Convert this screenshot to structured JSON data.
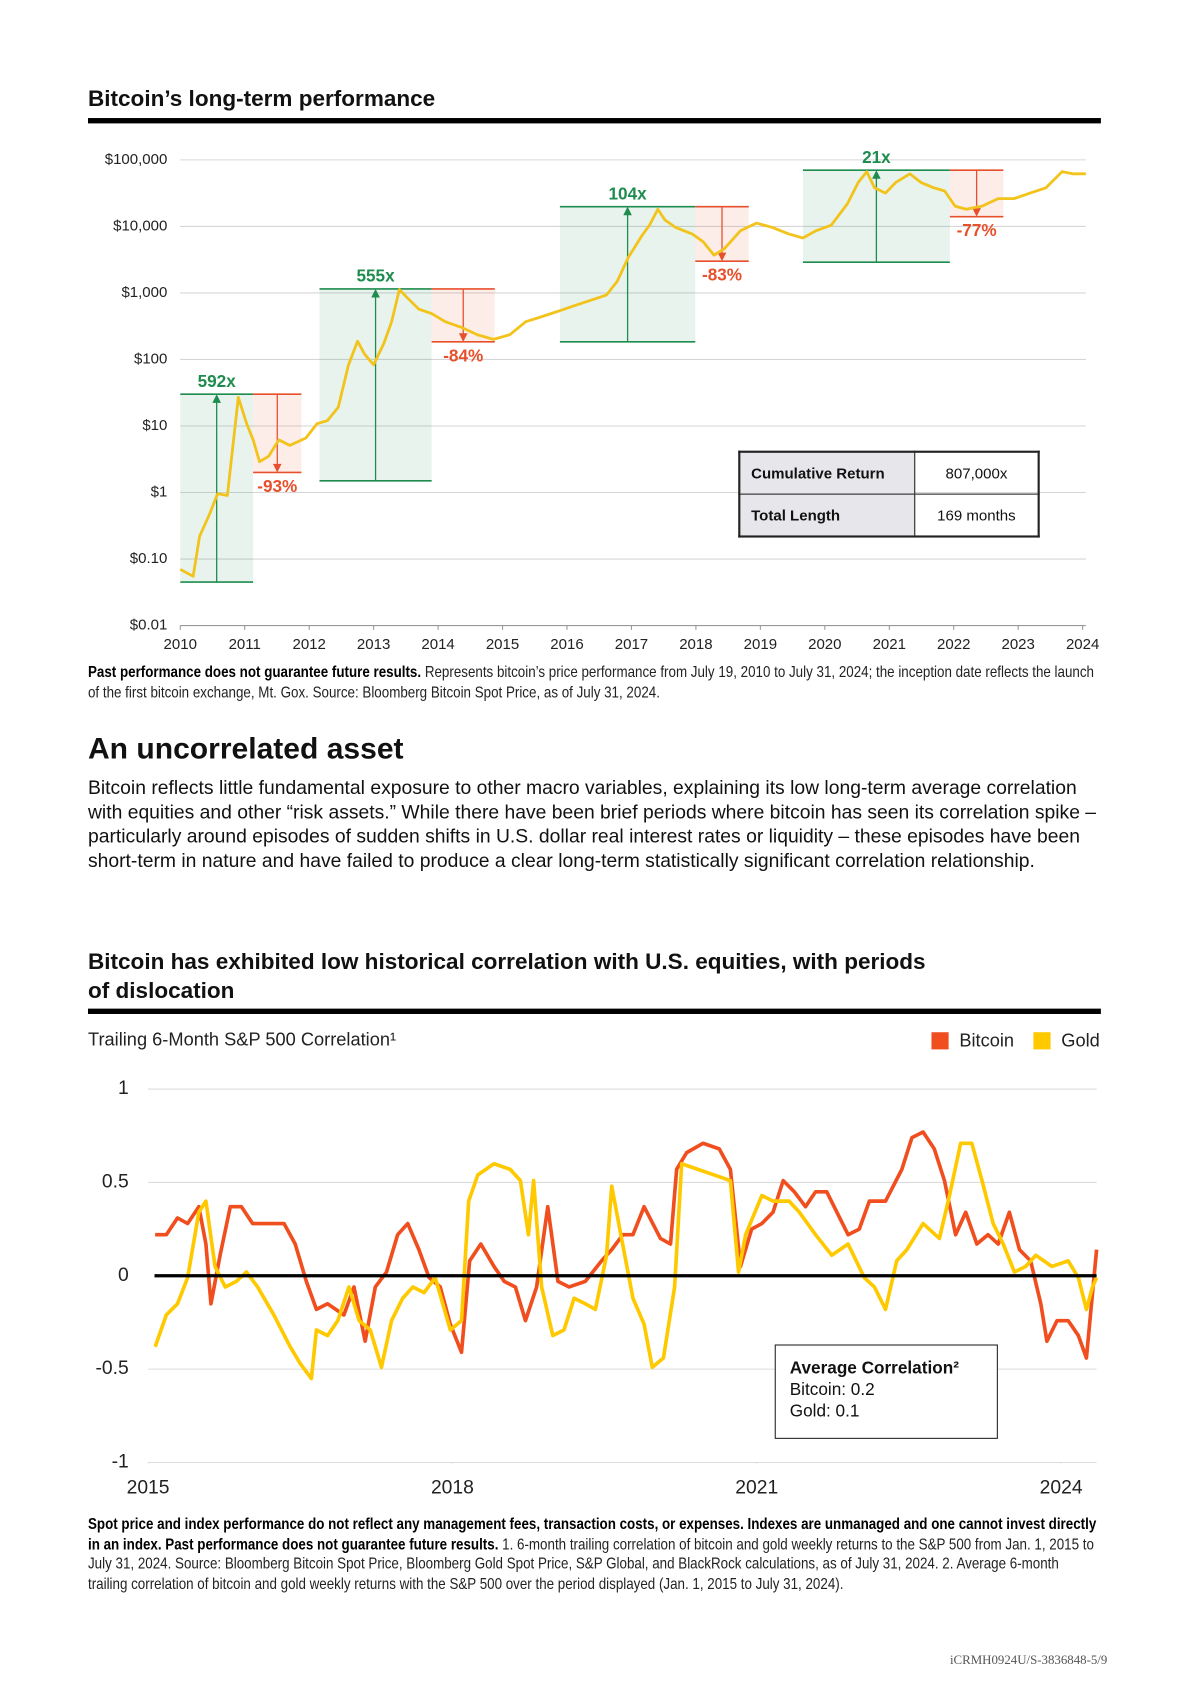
{
  "chart_data": [
    {
      "type": "line",
      "title": "Bitcoin’s long-term performance",
      "yscale": "log",
      "grid": true,
      "color": "#f2c31b",
      "x": [
        2010.0,
        2010.2,
        2010.3,
        2010.45,
        2010.58,
        2010.73,
        2010.9,
        2011.03,
        2011.13,
        2011.23,
        2011.37,
        2011.53,
        2011.7,
        2011.95,
        2012.12,
        2012.28,
        2012.45,
        2012.61,
        2012.75,
        2012.86,
        2013.0,
        2013.16,
        2013.28,
        2013.4,
        2013.53,
        2013.7,
        2013.9,
        2014.11,
        2014.36,
        2014.61,
        2014.86,
        2015.11,
        2015.36,
        2015.61,
        2015.86,
        2016.11,
        2016.36,
        2016.61,
        2016.78,
        2016.95,
        2017.16,
        2017.28,
        2017.41,
        2017.52,
        2017.69,
        2017.94,
        2018.11,
        2018.28,
        2018.44,
        2018.69,
        2018.94,
        2019.19,
        2019.44,
        2019.66,
        2019.86,
        2020.1,
        2020.35,
        2020.52,
        2020.65,
        2020.77,
        2020.94,
        2021.1,
        2021.32,
        2021.49,
        2021.69,
        2021.86,
        2022.02,
        2022.19,
        2022.44,
        2022.69,
        2022.94,
        2023.18,
        2023.43,
        2023.68,
        2023.85,
        2024.05
      ],
      "values": [
        0.07,
        0.055,
        0.22,
        0.46,
        0.96,
        0.9,
        27,
        10.8,
        6.2,
        2.9,
        3.5,
        6.2,
        5.1,
        6.6,
        10.8,
        12,
        19,
        83,
        188,
        120,
        83,
        175,
        370,
        1120,
        830,
        570,
        490,
        370,
        305,
        235,
        200,
        235,
        370,
        440,
        530,
        640,
        770,
        930,
        1500,
        3400,
        7200,
        10400,
        18100,
        12500,
        9600,
        7700,
        5900,
        3700,
        4600,
        8600,
        11200,
        9600,
        7700,
        6700,
        8600,
        10400,
        21800,
        45800,
        66500,
        38100,
        31600,
        45800,
        61700,
        45800,
        38100,
        34000,
        20200,
        18100,
        20200,
        26200,
        26200,
        31600,
        38100,
        66500,
        61700,
        61700
      ],
      "xlim": [
        2010,
        2024.05
      ],
      "xticks": [
        2010,
        2011,
        2012,
        2013,
        2014,
        2015,
        2016,
        2017,
        2018,
        2019,
        2020,
        2021,
        2022,
        2023,
        2024
      ],
      "ylim": [
        0.01,
        100000
      ],
      "yticks": [
        {
          "value": 0.01,
          "label": "$0.01"
        },
        {
          "value": 0.1,
          "label": "$0.10"
        },
        {
          "value": 1,
          "label": "$1"
        },
        {
          "value": 10,
          "label": "$10"
        },
        {
          "value": 100,
          "label": "$100"
        },
        {
          "value": 1000,
          "label": "$1,000"
        },
        {
          "value": 10000,
          "label": "$10,000"
        },
        {
          "value": 100000,
          "label": "$100,000"
        }
      ],
      "annotations": [
        {
          "label": "592x",
          "direction": "up",
          "color": "#1e8c4e",
          "x": [
            2010,
            2011.13
          ],
          "y": [
            0.045,
            30
          ]
        },
        {
          "label": "-93%",
          "direction": "down",
          "color": "#e8502c",
          "x": [
            2011.13,
            2011.88
          ],
          "y": [
            2,
            30
          ]
        },
        {
          "label": "555x",
          "direction": "up",
          "color": "#1e8c4e",
          "x": [
            2012.16,
            2013.9
          ],
          "y": [
            1.5,
            1150
          ]
        },
        {
          "label": "-84%",
          "direction": "down",
          "color": "#e8502c",
          "x": [
            2013.9,
            2014.88
          ],
          "y": [
            184,
            1150
          ]
        },
        {
          "label": "104x",
          "direction": "up",
          "color": "#1e8c4e",
          "x": [
            2015.89,
            2017.99
          ],
          "y": [
            184,
            19800
          ]
        },
        {
          "label": "-83%",
          "direction": "down",
          "color": "#e8502c",
          "x": [
            2017.99,
            2018.82
          ],
          "y": [
            3000,
            19800
          ]
        },
        {
          "label": "21x",
          "direction": "up",
          "color": "#1e8c4e",
          "x": [
            2019.66,
            2021.94
          ],
          "y": [
            2900,
            70000
          ]
        },
        {
          "label": "-77%",
          "direction": "down",
          "color": "#e8502c",
          "x": [
            2021.94,
            2022.77
          ],
          "y": [
            14000,
            70000
          ]
        }
      ],
      "summary_table": {
        "rows": [
          [
            "Cumulative Return",
            "807,000x"
          ],
          [
            "Total Length",
            "169 months"
          ]
        ]
      }
    },
    {
      "type": "line",
      "title": "Bitcoin has exhibited low historical correlation with U.S. equities, with periods of dislocation",
      "ylabel": "Trailing 6-Month S&P 500 Correlation¹",
      "grid": true,
      "zero_line": true,
      "legend": "top-right",
      "xlim": [
        2015,
        2024.35
      ],
      "xticks": [
        2015,
        2018,
        2021,
        2024
      ],
      "ylim": [
        -1,
        1
      ],
      "yticks": [
        -1,
        -0.5,
        0,
        0.5,
        1
      ],
      "series": [
        {
          "name": "Bitcoin",
          "color": "#f04e1e",
          "x": [
            2015.07,
            2015.18,
            2015.29,
            2015.39,
            2015.5,
            2015.57,
            2015.62,
            2015.71,
            2015.81,
            2015.92,
            2016.03,
            2016.19,
            2016.34,
            2016.45,
            2016.56,
            2016.66,
            2016.77,
            2016.93,
            2017.03,
            2017.14,
            2017.24,
            2017.35,
            2017.46,
            2017.56,
            2017.67,
            2017.77,
            2017.88,
            2017.98,
            2018.09,
            2018.17,
            2018.28,
            2018.41,
            2018.51,
            2018.62,
            2018.72,
            2018.83,
            2018.94,
            2019.04,
            2019.15,
            2019.31,
            2019.47,
            2019.57,
            2019.68,
            2019.78,
            2019.89,
            2020.05,
            2020.15,
            2020.21,
            2020.31,
            2020.47,
            2020.63,
            2020.74,
            2020.84,
            2020.95,
            2021.05,
            2021.16,
            2021.26,
            2021.37,
            2021.48,
            2021.58,
            2021.69,
            2021.79,
            2021.9,
            2022.01,
            2022.11,
            2022.27,
            2022.43,
            2022.53,
            2022.64,
            2022.75,
            2022.85,
            2022.96,
            2023.06,
            2023.17,
            2023.28,
            2023.38,
            2023.49,
            2023.59,
            2023.7,
            2023.8,
            2023.86,
            2023.96,
            2024.07,
            2024.17,
            2024.25,
            2024.35
          ],
          "values": [
            0.22,
            0.22,
            0.31,
            0.28,
            0.37,
            0.17,
            -0.15,
            0.11,
            0.37,
            0.37,
            0.28,
            0.28,
            0.28,
            0.17,
            -0.03,
            -0.18,
            -0.15,
            -0.21,
            -0.06,
            -0.35,
            -0.06,
            0.02,
            0.22,
            0.28,
            0.14,
            -0.01,
            -0.06,
            -0.26,
            -0.41,
            0.08,
            0.17,
            0.05,
            -0.03,
            -0.06,
            -0.24,
            -0.06,
            0.37,
            -0.03,
            -0.06,
            -0.03,
            0.08,
            0.14,
            0.22,
            0.22,
            0.37,
            0.2,
            0.17,
            0.57,
            0.66,
            0.71,
            0.68,
            0.57,
            0.05,
            0.25,
            0.28,
            0.34,
            0.51,
            0.45,
            0.37,
            0.45,
            0.45,
            0.34,
            0.22,
            0.25,
            0.4,
            0.4,
            0.57,
            0.74,
            0.77,
            0.68,
            0.51,
            0.22,
            0.34,
            0.17,
            0.22,
            0.17,
            0.34,
            0.14,
            0.08,
            -0.15,
            -0.35,
            -0.24,
            -0.24,
            -0.32,
            -0.44,
            0.14
          ]
        },
        {
          "name": "Gold",
          "color": "#ffc900",
          "x": [
            2015.07,
            2015.18,
            2015.29,
            2015.39,
            2015.5,
            2015.57,
            2015.66,
            2015.76,
            2015.87,
            2015.97,
            2016.08,
            2016.24,
            2016.4,
            2016.5,
            2016.61,
            2016.66,
            2016.77,
            2016.87,
            2016.98,
            2017.08,
            2017.19,
            2017.3,
            2017.4,
            2017.51,
            2017.61,
            2017.72,
            2017.83,
            2017.98,
            2018.09,
            2018.16,
            2018.25,
            2018.41,
            2018.57,
            2018.67,
            2018.75,
            2018.8,
            2018.88,
            2018.99,
            2019.1,
            2019.2,
            2019.31,
            2019.41,
            2019.52,
            2019.57,
            2019.66,
            2019.78,
            2019.89,
            2019.97,
            2020.08,
            2020.19,
            2020.26,
            2020.42,
            2020.58,
            2020.74,
            2020.82,
            2020.89,
            2021.05,
            2021.16,
            2021.32,
            2021.42,
            2021.58,
            2021.74,
            2021.9,
            2022.06,
            2022.16,
            2022.27,
            2022.38,
            2022.48,
            2022.64,
            2022.8,
            2022.9,
            2023.01,
            2023.12,
            2023.22,
            2023.33,
            2023.43,
            2023.54,
            2023.65,
            2023.75,
            2023.91,
            2024.07,
            2024.17,
            2024.25,
            2024.31,
            2024.35
          ],
          "values": [
            -0.38,
            -0.21,
            -0.15,
            -0.01,
            0.34,
            0.4,
            0.05,
            -0.06,
            -0.03,
            0.02,
            -0.06,
            -0.21,
            -0.38,
            -0.47,
            -0.55,
            -0.29,
            -0.32,
            -0.24,
            -0.06,
            -0.24,
            -0.29,
            -0.49,
            -0.24,
            -0.12,
            -0.06,
            -0.09,
            -0.01,
            -0.29,
            -0.24,
            0.4,
            0.54,
            0.6,
            0.57,
            0.51,
            0.22,
            0.51,
            -0.06,
            -0.32,
            -0.29,
            -0.12,
            -0.15,
            -0.18,
            0.11,
            0.48,
            0.22,
            -0.12,
            -0.26,
            -0.49,
            -0.44,
            -0.06,
            0.6,
            0.57,
            0.54,
            0.51,
            0.02,
            0.22,
            0.43,
            0.4,
            0.4,
            0.34,
            0.22,
            0.11,
            0.17,
            -0.01,
            -0.06,
            -0.18,
            0.08,
            0.14,
            0.28,
            0.2,
            0.43,
            0.71,
            0.71,
            0.51,
            0.28,
            0.17,
            0.02,
            0.05,
            0.11,
            0.05,
            0.08,
            -0.01,
            -0.18,
            -0.06,
            -0.01
          ]
        }
      ],
      "note": {
        "title": "Average Correlation²",
        "lines": [
          "Bitcoin: 0.2",
          "Gold: 0.1"
        ]
      }
    }
  ],
  "document": {
    "caption": {
      "bold": "Past performance does not guarantee future results.",
      "text": "Represents bitcoin’s price performance from July 19, 2010 to July 31, 2024; the inception date reflects the launch of the first bitcoin exchange, Mt. Gox. Source: Bloomberg Bitcoin Spot Price, as of July 31, 2024."
    },
    "section": {
      "heading": "An uncorrelated asset",
      "body": "Bitcoin reflects little fundamental exposure to other macro variables, explaining its low long-term average correlation with equities and other “risk assets.” While there have been brief periods where bitcoin has seen its correlation spike – particularly around episodes of sudden shifts in U.S. dollar real interest rates or liquidity – these episodes have been short-term in nature and have failed to produce a clear long-term statistically significant correlation relationship."
    },
    "footnote": {
      "bold": "Spot price and index performance do not reflect any management fees, transaction costs, or expenses. Indexes are unmanaged and one cannot invest directly in an index. Past performance does not guarantee future results.",
      "text": "1. 6-month trailing correlation of bitcoin and gold weekly returns to the S&P 500 from Jan. 1, 2015 to July 31, 2024. Source: Bloomberg Bitcoin Spot Price, Bloomberg Gold Spot Price, S&P Global, and BlackRock calculations, as of July 31, 2024. 2. Average 6-month trailing correlation of bitcoin and gold weekly returns with the S&P 500 over the period displayed (Jan. 1, 2015 to July 31, 2024)."
    },
    "footer": "iCRMH0924U/S-3836848-5/9"
  }
}
